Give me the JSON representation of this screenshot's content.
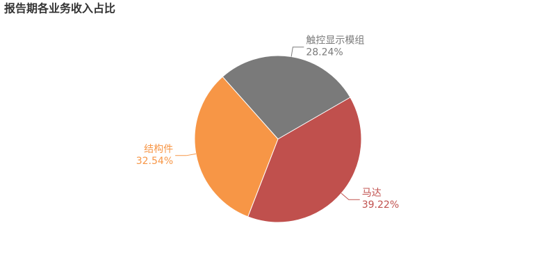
{
  "chart_data": {
    "type": "pie",
    "title": "报告期各业务收入占比",
    "categories": [
      "马达",
      "结构件",
      "触控显示模组"
    ],
    "values": [
      39.22,
      32.54,
      28.24
    ],
    "value_labels": [
      "39.22%",
      "32.54%",
      "28.24%"
    ],
    "colors": [
      "#c0504d",
      "#f79646",
      "#7a7a7a"
    ]
  }
}
